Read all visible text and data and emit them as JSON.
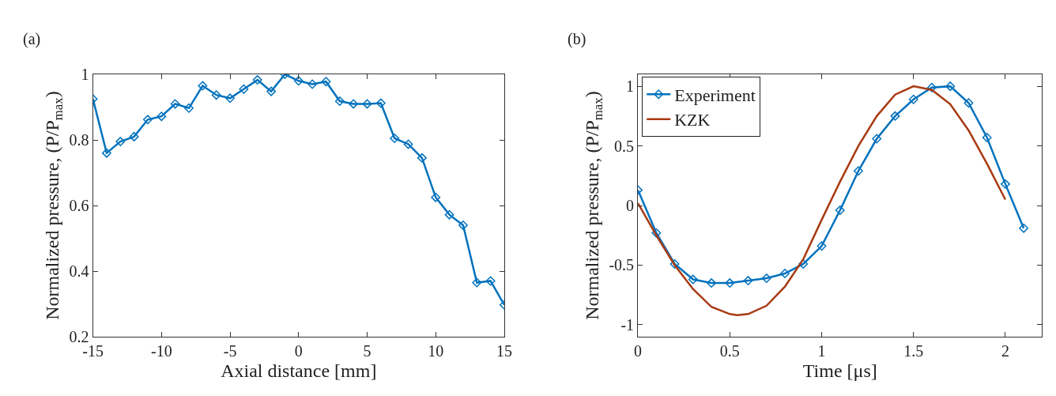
{
  "chart_data": [
    {
      "type": "line",
      "title": "(a)",
      "xlabel": "Axial distance [mm]",
      "ylabel": "Normalized pressure, (P/P$_{max}$)",
      "x": [
        -15,
        -14,
        -13,
        -12,
        -11,
        -10,
        -9,
        -8,
        -7,
        -6,
        -5,
        -4,
        -3,
        -2,
        -1,
        0,
        1,
        2,
        3,
        4,
        5,
        6,
        7,
        8,
        9,
        10,
        11,
        12,
        13,
        14,
        15
      ],
      "series": [
        {
          "color": "#0072bd",
          "values": [
            0.925,
            0.76,
            0.795,
            0.81,
            0.862,
            0.872,
            0.91,
            0.897,
            0.965,
            0.937,
            0.927,
            0.955,
            0.983,
            0.948,
            1.0,
            0.98,
            0.97,
            0.978,
            0.918,
            0.91,
            0.91,
            0.912,
            0.805,
            0.787,
            0.745,
            0.625,
            0.572,
            0.54,
            0.365,
            0.37,
            0.297
          ]
        }
      ],
      "xlim": [
        -15,
        15
      ],
      "xticks": [
        -15,
        -10,
        -5,
        0,
        5,
        10,
        15
      ],
      "ylim": [
        0.2,
        1
      ],
      "yticks": [
        0.2,
        0.4,
        0.6,
        0.8,
        1
      ],
      "marker": "diamond",
      "legend": false
    },
    {
      "type": "line",
      "title": "(b)",
      "xlabel": "Time [μs]",
      "ylabel": "Normalized pressure, (P/P$_{max}$)",
      "series": [
        {
          "name": "Experiment",
          "color": "#0072bd",
          "marker": "diamond",
          "x": [
            0,
            0.1,
            0.2,
            0.3,
            0.4,
            0.5,
            0.6,
            0.7,
            0.8,
            0.9,
            1.0,
            1.1,
            1.2,
            1.3,
            1.4,
            1.5,
            1.6,
            1.7,
            1.8,
            1.9,
            2.0,
            2.1
          ],
          "values": [
            0.13,
            -0.23,
            -0.49,
            -0.62,
            -0.65,
            -0.65,
            -0.63,
            -0.61,
            -0.57,
            -0.49,
            -0.34,
            -0.04,
            0.29,
            0.56,
            0.75,
            0.89,
            0.99,
            1.0,
            0.86,
            0.57,
            0.18,
            -0.19
          ]
        },
        {
          "name": "KZK",
          "color": "#a83a12",
          "marker": "none",
          "x": [
            0,
            0.1,
            0.2,
            0.3,
            0.4,
            0.5,
            0.54,
            0.6,
            0.7,
            0.8,
            0.9,
            1.0,
            1.1,
            1.2,
            1.3,
            1.4,
            1.5,
            1.6,
            1.7,
            1.8,
            1.9,
            2.0
          ],
          "values": [
            0.02,
            -0.25,
            -0.5,
            -0.7,
            -0.85,
            -0.91,
            -0.92,
            -0.91,
            -0.84,
            -0.68,
            -0.45,
            -0.12,
            0.2,
            0.5,
            0.75,
            0.93,
            1.0,
            0.97,
            0.85,
            0.63,
            0.35,
            0.05
          ]
        }
      ],
      "xlim": [
        0,
        2.2
      ],
      "xticks": [
        0,
        0.5,
        1,
        1.5,
        2
      ],
      "ylim": [
        -1.1,
        1.1
      ],
      "yticks": [
        -1,
        -0.5,
        0,
        0.5,
        1
      ],
      "legend": "top left"
    }
  ]
}
